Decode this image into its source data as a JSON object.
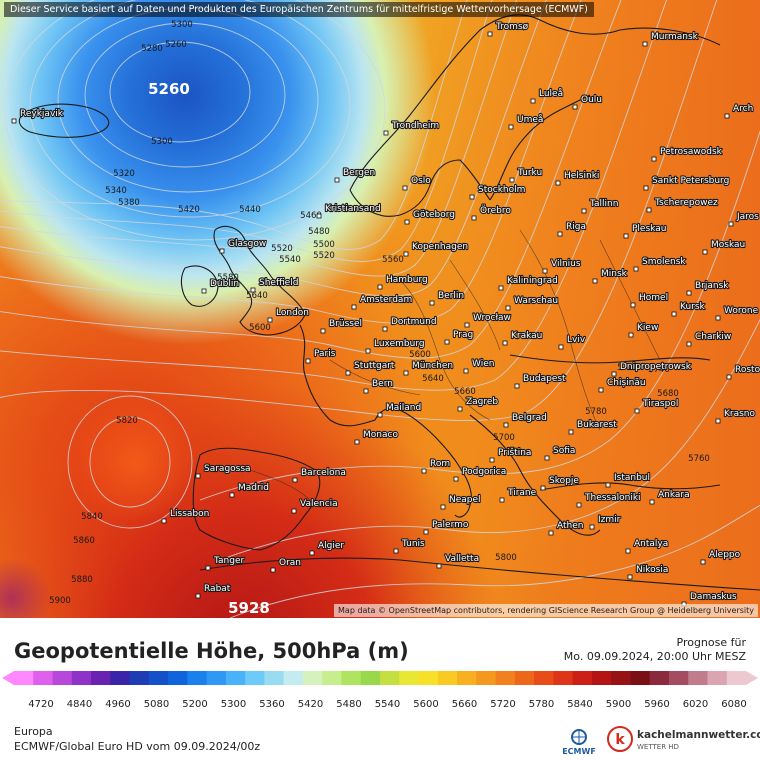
{
  "disclaimer": "Dieser Service basiert auf Daten und Produkten des Europäischen Zentrums für mittelfristige Wettervorhersage (ECMWF)",
  "attribution": "Map data © OpenStreetMap contributors, rendering GIScience Research Group @ Heidelberg University",
  "title": "Geopotentielle Höhe, 500hPa (m)",
  "valid_label": "Prognose für",
  "valid_time": "Mo. 09.09.2024, 20:00 Uhr MESZ",
  "region": "Europa",
  "model_run": "ECMWF/Global Euro HD vom  09.09.2024/00z",
  "brand": {
    "name": "kachelmannwetter.com",
    "sub": "WETTER HD",
    "ecmwf": "ECMWF"
  },
  "scale": {
    "ticks": [
      "4720",
      "4840",
      "4960",
      "5080",
      "5200",
      "5300",
      "5360",
      "5420",
      "5480",
      "5540",
      "5600",
      "5660",
      "5720",
      "5780",
      "5840",
      "5900",
      "5960",
      "6020",
      "6080"
    ],
    "colors": [
      "#ff88ff",
      "#e060ee",
      "#b848dc",
      "#8e32c8",
      "#6a22b0",
      "#3a24a8",
      "#1e3cb4",
      "#1450c8",
      "#0f64dc",
      "#1a80ec",
      "#2e98f4",
      "#4ab2f8",
      "#6ecaf6",
      "#98dcf2",
      "#c4ecf0",
      "#d6f2bc",
      "#c6ee8c",
      "#aee460",
      "#98d84a",
      "#c4e040",
      "#e8e832",
      "#f8e028",
      "#f8ca22",
      "#f6b020",
      "#f4981e",
      "#f2801c",
      "#ee661a",
      "#e84c18",
      "#de3418",
      "#cc2016",
      "#b41414",
      "#961214",
      "#7a1016",
      "#8a2a3c",
      "#a44c62",
      "#c07c8c",
      "#daa4b0",
      "#eec8d0"
    ]
  },
  "centers": [
    {
      "label": "5260",
      "color": "#ffffff"
    },
    {
      "label": "5928",
      "color": "#ffffff"
    }
  ],
  "contours": [
    {
      "label": "5300"
    },
    {
      "label": "5280"
    },
    {
      "label": "5260"
    },
    {
      "label": "5300"
    },
    {
      "label": "5320"
    },
    {
      "label": "5340"
    },
    {
      "label": "5380"
    },
    {
      "label": "5420"
    },
    {
      "label": "5440"
    },
    {
      "label": "5460"
    },
    {
      "label": "5480"
    },
    {
      "label": "5500"
    },
    {
      "label": "5520"
    },
    {
      "label": "5520"
    },
    {
      "label": "5540"
    },
    {
      "label": "5560"
    },
    {
      "label": "5580"
    },
    {
      "label": "5600"
    },
    {
      "label": "5640"
    },
    {
      "label": "5660"
    },
    {
      "label": "5700"
    },
    {
      "label": "5720"
    },
    {
      "label": "5740"
    },
    {
      "label": "5760"
    },
    {
      "label": "5780"
    },
    {
      "label": "5800"
    },
    {
      "label": "5820"
    },
    {
      "label": "5840"
    },
    {
      "label": "5860"
    },
    {
      "label": "5880"
    },
    {
      "label": "5900"
    },
    {
      "label": "5680"
    },
    {
      "label": "5640"
    },
    {
      "label": "5600"
    }
  ],
  "cities": [
    {
      "name": "Tromsø"
    },
    {
      "name": "Murmansk"
    },
    {
      "name": "Reykjavik"
    },
    {
      "name": "Luleå"
    },
    {
      "name": "Oulu"
    },
    {
      "name": "Umeå"
    },
    {
      "name": "Trondheim"
    },
    {
      "name": "Arch"
    },
    {
      "name": "Petrosawodsk"
    },
    {
      "name": "Bergen"
    },
    {
      "name": "Oslo"
    },
    {
      "name": "Turku"
    },
    {
      "name": "Helsinki"
    },
    {
      "name": "Sankt Petersburg"
    },
    {
      "name": "Stockholm"
    },
    {
      "name": "Kristiansand"
    },
    {
      "name": "Örebro"
    },
    {
      "name": "Tallinn"
    },
    {
      "name": "Tscherepowez"
    },
    {
      "name": "Göteborg"
    },
    {
      "name": "Jaros"
    },
    {
      "name": "Pleskau"
    },
    {
      "name": "Riga"
    },
    {
      "name": "Glasgow"
    },
    {
      "name": "Kopenhagen"
    },
    {
      "name": "Moskau"
    },
    {
      "name": "Vilnius"
    },
    {
      "name": "Smolensk"
    },
    {
      "name": "Minsk"
    },
    {
      "name": "Dublin"
    },
    {
      "name": "Sheffield"
    },
    {
      "name": "Hamburg"
    },
    {
      "name": "Kaliningrad"
    },
    {
      "name": "Brjansk"
    },
    {
      "name": "Amsterdam"
    },
    {
      "name": "Berlin"
    },
    {
      "name": "Warschau"
    },
    {
      "name": "Homel"
    },
    {
      "name": "Kursk"
    },
    {
      "name": "London"
    },
    {
      "name": "Brüssel"
    },
    {
      "name": "Dortmund"
    },
    {
      "name": "Wrocław"
    },
    {
      "name": "Kiew"
    },
    {
      "name": "Worone"
    },
    {
      "name": "Prag"
    },
    {
      "name": "Krakau"
    },
    {
      "name": "Lviv"
    },
    {
      "name": "Charkiw"
    },
    {
      "name": "Paris"
    },
    {
      "name": "Luxemburg"
    },
    {
      "name": "Stuttgart"
    },
    {
      "name": "München"
    },
    {
      "name": "Wien"
    },
    {
      "name": "Dnipropetrowsk"
    },
    {
      "name": "Rosto"
    },
    {
      "name": "Bern"
    },
    {
      "name": "Budapest"
    },
    {
      "name": "Chișinău"
    },
    {
      "name": "Zagreb"
    },
    {
      "name": "Tiraspol"
    },
    {
      "name": "Mailand"
    },
    {
      "name": "Belgrad"
    },
    {
      "name": "Krasno"
    },
    {
      "name": "Monaco"
    },
    {
      "name": "Bukarest"
    },
    {
      "name": "Priština"
    },
    {
      "name": "Sofia"
    },
    {
      "name": "Rom"
    },
    {
      "name": "Podgorica"
    },
    {
      "name": "Saragossa"
    },
    {
      "name": "Barcelona"
    },
    {
      "name": "Skopje"
    },
    {
      "name": "Istanbul"
    },
    {
      "name": "Madrid"
    },
    {
      "name": "Tirane"
    },
    {
      "name": "Ankara"
    },
    {
      "name": "Neapel"
    },
    {
      "name": "Thessaloniki"
    },
    {
      "name": "Valencia"
    },
    {
      "name": "Lissabon"
    },
    {
      "name": "Palermo"
    },
    {
      "name": "Izmir"
    },
    {
      "name": "Athen"
    },
    {
      "name": "Algier"
    },
    {
      "name": "Tunis"
    },
    {
      "name": "Antalya"
    },
    {
      "name": "Aleppo"
    },
    {
      "name": "Tanger"
    },
    {
      "name": "Oran"
    },
    {
      "name": "Valletta"
    },
    {
      "name": "Nikosia"
    },
    {
      "name": "Rabat"
    },
    {
      "name": "Damaskus"
    }
  ]
}
